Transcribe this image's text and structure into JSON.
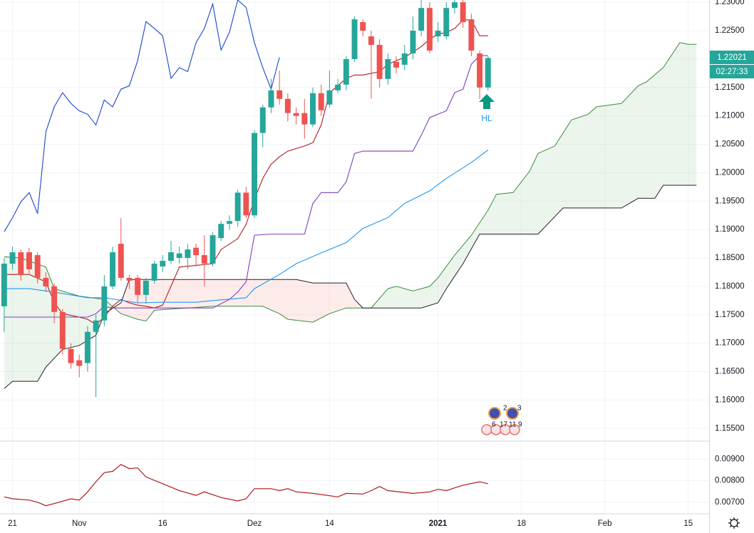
{
  "chart_data": [
    {
      "type": "candlestick",
      "xlim": [
        -1.5,
        83.5
      ],
      "ylim": [
        1.1529,
        1.2304
      ],
      "grid": true,
      "yticks": [
        {
          "value": 1.155,
          "label": "1.15500"
        },
        {
          "value": 1.16,
          "label": "1.16000"
        },
        {
          "value": 1.165,
          "label": "1.16500"
        },
        {
          "value": 1.17,
          "label": "1.17000"
        },
        {
          "value": 1.175,
          "label": "1.17500"
        },
        {
          "value": 1.18,
          "label": "1.18000"
        },
        {
          "value": 1.185,
          "label": "1.18500"
        },
        {
          "value": 1.19,
          "label": "1.19000"
        },
        {
          "value": 1.195,
          "label": "1.19500"
        },
        {
          "value": 1.2,
          "label": "1.20000"
        },
        {
          "value": 1.205,
          "label": "1.20500"
        },
        {
          "value": 1.21,
          "label": "1.21000"
        },
        {
          "value": 1.215,
          "label": "1.21500"
        },
        {
          "value": 1.22,
          "label": "1.22000"
        },
        {
          "value": 1.225,
          "label": "1.22500"
        },
        {
          "value": 1.23,
          "label": "1.23000"
        }
      ],
      "up_color": "#26a69a",
      "down_color": "#ef5350",
      "x": [
        -1,
        0,
        1,
        2,
        3,
        4,
        5,
        6,
        7,
        8,
        9,
        10,
        11,
        12,
        13,
        14,
        15,
        16,
        17,
        18,
        19,
        20,
        21,
        22,
        23,
        24,
        25,
        26,
        27,
        28,
        29,
        30,
        31,
        32,
        33,
        34,
        35,
        36,
        37,
        38,
        39,
        40,
        41,
        42,
        43,
        44,
        45,
        46,
        47,
        48,
        49,
        50,
        51,
        52,
        53,
        54,
        55,
        56,
        57
      ],
      "open": [
        1.1765,
        1.184,
        1.186,
        1.186,
        1.1855,
        1.1815,
        1.18,
        1.1755,
        1.169,
        1.167,
        1.1665,
        1.172,
        1.174,
        1.18,
        1.1875,
        1.1815,
        1.1815,
        1.1785,
        1.181,
        1.1835,
        1.1845,
        1.185,
        1.185,
        1.1868,
        1.1855,
        1.184,
        1.1885,
        1.191,
        1.1915,
        1.1965,
        1.1925,
        1.207,
        1.2115,
        1.2145,
        1.213,
        1.2105,
        1.2105,
        1.2085,
        1.214,
        1.212,
        1.2145,
        1.2155,
        1.22,
        1.2265,
        1.224,
        1.2225,
        1.2165,
        1.2195,
        1.219,
        1.221,
        1.225,
        1.229,
        1.224,
        1.224,
        1.229,
        1.23,
        1.227,
        1.221,
        1.215
      ],
      "high": [
        1.185,
        1.187,
        1.1865,
        1.1868,
        1.186,
        1.1825,
        1.1805,
        1.176,
        1.17,
        1.168,
        1.173,
        1.175,
        1.182,
        1.187,
        1.192,
        1.182,
        1.182,
        1.1815,
        1.1845,
        1.1855,
        1.188,
        1.187,
        1.1875,
        1.1875,
        1.189,
        1.1895,
        1.1915,
        1.1925,
        1.197,
        1.1975,
        1.2075,
        1.212,
        1.2165,
        1.218,
        1.214,
        1.2115,
        1.213,
        1.215,
        1.2155,
        1.218,
        1.2165,
        1.2205,
        1.2275,
        1.227,
        1.225,
        1.2235,
        1.221,
        1.2205,
        1.2225,
        1.2275,
        1.231,
        1.23,
        1.2265,
        1.23,
        1.231,
        1.231,
        1.228,
        1.2215,
        1.2205
      ],
      "low": [
        1.172,
        1.183,
        1.181,
        1.182,
        1.1805,
        1.179,
        1.1735,
        1.168,
        1.1655,
        1.164,
        1.165,
        1.1605,
        1.173,
        1.1795,
        1.181,
        1.1795,
        1.177,
        1.177,
        1.1805,
        1.1825,
        1.184,
        1.184,
        1.183,
        1.1835,
        1.18,
        1.1835,
        1.188,
        1.19,
        1.1905,
        1.192,
        1.192,
        1.2045,
        1.2105,
        1.212,
        1.209,
        1.2085,
        1.206,
        1.208,
        1.21,
        1.2115,
        1.214,
        1.2145,
        1.2195,
        1.224,
        1.213,
        1.215,
        1.2155,
        1.2175,
        1.218,
        1.22,
        1.224,
        1.221,
        1.223,
        1.2235,
        1.228,
        1.2255,
        1.2205,
        1.213,
        1.2145
      ],
      "close": [
        1.184,
        1.186,
        1.182,
        1.183,
        1.1815,
        1.18,
        1.1755,
        1.169,
        1.1665,
        1.166,
        1.172,
        1.174,
        1.18,
        1.186,
        1.1815,
        1.181,
        1.1785,
        1.181,
        1.184,
        1.1845,
        1.186,
        1.1858,
        1.1865,
        1.1855,
        1.184,
        1.189,
        1.191,
        1.1915,
        1.1965,
        1.1925,
        1.207,
        1.2115,
        1.2145,
        1.213,
        1.2105,
        1.21,
        1.2085,
        1.214,
        1.211,
        1.2145,
        1.2155,
        1.22,
        1.227,
        1.225,
        1.2225,
        1.2165,
        1.22,
        1.2185,
        1.221,
        1.225,
        1.229,
        1.2215,
        1.225,
        1.229,
        1.23,
        1.2265,
        1.2215,
        1.215,
        1.2202
      ],
      "lines": [
        {
          "color": "#1848cc",
          "x": [
            -1,
            0,
            1,
            2,
            3,
            4,
            5,
            6,
            7,
            8,
            9,
            10,
            11,
            12,
            13,
            14,
            15,
            16,
            17,
            18,
            19,
            20,
            21,
            22,
            23,
            24,
            25,
            26,
            27,
            28,
            29,
            30,
            31,
            32
          ],
          "values": [
            1.1896,
            1.1921,
            1.1949,
            1.1965,
            1.1928,
            1.2072,
            1.2116,
            1.2141,
            1.2122,
            1.2109,
            1.2103,
            1.2084,
            1.2128,
            1.2116,
            1.2147,
            1.2153,
            1.2197,
            1.2266,
            1.2254,
            1.2241,
            1.2166,
            1.2185,
            1.2178,
            1.2229,
            1.2254,
            1.2297,
            1.2216,
            1.2247,
            1.2304,
            1.2291,
            1.2229,
            1.2185,
            1.2147,
            1.2203
          ]
        },
        {
          "color": "#b2181b",
          "x": [
            -1,
            0,
            2,
            4,
            5,
            6,
            7,
            8,
            9,
            10,
            11,
            12,
            13,
            14,
            15,
            16,
            17,
            18,
            20,
            22,
            24,
            25,
            27,
            28,
            29,
            30,
            31,
            32,
            33,
            35,
            36,
            37,
            38,
            39,
            40,
            41,
            42,
            44,
            45,
            46,
            47,
            49,
            50,
            51,
            52,
            53,
            54,
            55,
            56,
            57
          ],
          "values": [
            1.1821,
            1.1821,
            1.1821,
            1.1808,
            1.1771,
            1.1752,
            1.1749,
            1.1746,
            1.1742,
            1.1733,
            1.1746,
            1.1765,
            1.1777,
            1.1771,
            1.1767,
            1.1765,
            1.1762,
            1.1767,
            1.1834,
            1.1837,
            1.184,
            1.1865,
            1.1884,
            1.1909,
            1.1953,
            1.199,
            1.2015,
            1.2028,
            1.2038,
            1.2047,
            1.2053,
            1.2084,
            1.2141,
            1.2153,
            1.2166,
            1.2172,
            1.2172,
            1.2178,
            1.2191,
            1.2197,
            1.2203,
            1.2222,
            1.2235,
            1.2244,
            1.2247,
            1.2254,
            1.2269,
            1.2269,
            1.2241,
            1.2241
          ]
        },
        {
          "color": "#7e3fbf",
          "x": [
            -1,
            4,
            9,
            10,
            11,
            12,
            18,
            24,
            26,
            27,
            28,
            29,
            31,
            35,
            36,
            37,
            39,
            40,
            41,
            42,
            48,
            49,
            50,
            52,
            53,
            54,
            55,
            56,
            57
          ],
          "values": [
            1.1746,
            1.1746,
            1.1746,
            1.1752,
            1.1765,
            1.1762,
            1.1762,
            1.1762,
            1.1777,
            1.179,
            1.1808,
            1.189,
            1.1892,
            1.1892,
            1.1946,
            1.1965,
            1.1965,
            1.1984,
            1.2034,
            1.2038,
            1.2038,
            1.2066,
            1.2097,
            1.2109,
            1.2141,
            1.2147,
            1.2191,
            1.2206,
            1.2206
          ]
        },
        {
          "color": "#2196f3",
          "x": [
            -1,
            2,
            5,
            9,
            11,
            15,
            18,
            22,
            24,
            28,
            29,
            32,
            34,
            37,
            40,
            42,
            45,
            47,
            50,
            52,
            55,
            57
          ],
          "values": [
            1.1796,
            1.1796,
            1.179,
            1.178,
            1.178,
            1.1771,
            1.1772,
            1.1772,
            1.1775,
            1.178,
            1.1796,
            1.1821,
            1.184,
            1.1859,
            1.1877,
            1.1902,
            1.1921,
            1.1946,
            1.1968,
            1.199,
            1.2018,
            1.204
          ]
        }
      ],
      "span_a": {
        "color": "#388e3c",
        "x": [
          -1,
          1,
          4,
          5,
          8,
          11,
          13,
          15,
          16,
          17,
          21,
          24,
          28,
          30,
          32,
          33,
          36,
          38,
          40,
          43,
          45,
          46,
          48,
          50,
          51,
          53,
          55,
          57,
          58,
          60,
          62,
          63,
          65,
          67,
          69,
          70,
          73,
          75,
          76,
          78,
          80,
          81,
          82
        ],
        "values": [
          1.1852,
          1.185,
          1.1834,
          1.1796,
          1.1783,
          1.1777,
          1.1752,
          1.1742,
          1.1739,
          1.1758,
          1.1762,
          1.1765,
          1.1765,
          1.1765,
          1.1752,
          1.1742,
          1.1737,
          1.1752,
          1.1762,
          1.1762,
          1.1796,
          1.18,
          1.1792,
          1.18,
          1.1815,
          1.1855,
          1.189,
          1.1934,
          1.1962,
          1.1965,
          1.2003,
          1.2034,
          1.2047,
          1.2093,
          1.2103,
          1.2116,
          1.2122,
          1.2153,
          1.216,
          1.2185,
          1.2229,
          1.2226,
          1.2226
        ]
      },
      "span_b": {
        "color": "#222222",
        "x": [
          -1,
          0,
          3,
          4,
          6,
          8,
          10,
          11,
          13,
          14,
          24,
          34,
          36,
          40,
          41,
          42,
          49,
          51,
          52,
          54,
          56,
          63,
          66,
          73,
          75,
          77,
          78,
          82
        ],
        "values": [
          1.162,
          1.1633,
          1.1633,
          1.1658,
          1.1689,
          1.1696,
          1.1714,
          1.1752,
          1.1771,
          1.1812,
          1.1812,
          1.1812,
          1.1806,
          1.1806,
          1.1777,
          1.1762,
          1.1762,
          1.1771,
          1.1796,
          1.184,
          1.1892,
          1.1892,
          1.1938,
          1.1938,
          1.1955,
          1.1955,
          1.1978,
          1.1978
        ]
      },
      "last_price_label": "1.22021",
      "countdown": "02:27:33",
      "pattern_label": "HL",
      "event_labels": [
        "2",
        "3",
        "6",
        "17",
        "11",
        "9"
      ]
    },
    {
      "type": "line",
      "color": "#b2181b",
      "xlim": [
        -1.5,
        83.5
      ],
      "ylim": [
        0.0065,
        0.0098
      ],
      "yticks": [
        {
          "value": 0.007,
          "label": "0.00700"
        },
        {
          "value": 0.008,
          "label": "0.00800"
        },
        {
          "value": 0.009,
          "label": "0.00900"
        }
      ],
      "xticks": [
        {
          "value": 0,
          "label": "21"
        },
        {
          "value": 8,
          "label": "Nov"
        },
        {
          "value": 18,
          "label": "16"
        },
        {
          "value": 29,
          "label": "Dez"
        },
        {
          "value": 38,
          "label": "14"
        },
        {
          "value": 51,
          "label": "2021"
        },
        {
          "value": 61,
          "label": "18"
        },
        {
          "value": 71,
          "label": "Feb"
        },
        {
          "value": 81,
          "label": "15"
        }
      ],
      "x": [
        -1,
        0,
        2,
        3,
        4,
        5,
        7,
        8,
        9,
        10,
        11,
        12,
        13,
        14,
        15,
        16,
        18,
        20,
        22,
        23,
        25,
        27,
        28,
        29,
        31,
        32,
        33,
        34,
        36,
        39,
        40,
        42,
        43,
        44,
        45,
        48,
        50,
        51,
        52,
        54,
        56,
        57
      ],
      "values": [
        0.00725,
        0.00716,
        0.0071,
        0.007,
        0.00684,
        0.00694,
        0.00716,
        0.0071,
        0.00748,
        0.00795,
        0.00837,
        0.00843,
        0.00875,
        0.00856,
        0.00859,
        0.00817,
        0.00786,
        0.00754,
        0.00732,
        0.00748,
        0.00722,
        0.00706,
        0.00716,
        0.00763,
        0.00763,
        0.00754,
        0.00763,
        0.00748,
        0.00741,
        0.00725,
        0.00741,
        0.00738,
        0.00754,
        0.00773,
        0.00754,
        0.00741,
        0.00748,
        0.0076,
        0.00754,
        0.00779,
        0.00795,
        0.00786
      ]
    }
  ]
}
